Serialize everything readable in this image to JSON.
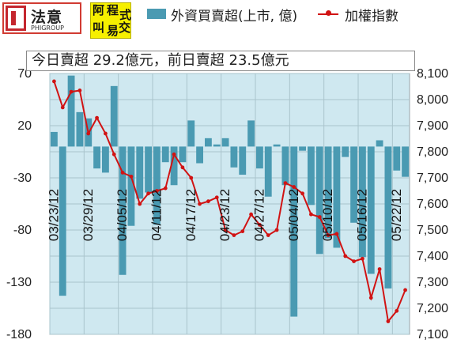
{
  "logos": {
    "brand_name": "法意",
    "brand_sub": "PHIGROUP",
    "badge_chars": [
      "阿",
      "程",
      "式",
      "叫",
      "易",
      "交"
    ]
  },
  "legend": {
    "bar_label": "外資買賣超(上市, 億)",
    "line_label": "加權指數"
  },
  "summary": "今日賣超 29.2億元，前日賣超 23.5億元",
  "colors": {
    "bar": "#4a9ab2",
    "line": "#d11313",
    "plot_bg": "#cfe8f0"
  },
  "chart_data": {
    "type": "bar+line",
    "x_labels": [
      "03/23/12",
      "03/29/12",
      "04/05/12",
      "04/11/12",
      "04/17/12",
      "04/23/12",
      "04/27/12",
      "05/04/12",
      "05/10/12",
      "05/16/12",
      "05/22/12"
    ],
    "x_label_every": 4,
    "bars": [
      14,
      -143,
      68,
      33,
      27,
      -21,
      -25,
      58,
      -123,
      -76,
      -50,
      -44,
      -75,
      -15,
      -37,
      -15,
      25,
      -16,
      8,
      2,
      8,
      -20,
      -27,
      25,
      -21,
      -48,
      2,
      -37,
      -163,
      -4,
      -56,
      -103,
      -88,
      -97,
      -10,
      -73,
      -106,
      -122,
      6,
      -136,
      -23,
      -29
    ],
    "bars_label": "外資買賣超(上市, 億)",
    "bars_ylim": [
      -180,
      70
    ],
    "bars_yticks": [
      70,
      20,
      -30,
      -80,
      -130,
      -180
    ],
    "line": [
      8070,
      7970,
      8030,
      8035,
      7870,
      7930,
      7870,
      7790,
      7720,
      7705,
      7600,
      7640,
      7650,
      7660,
      7790,
      7740,
      7700,
      7600,
      7610,
      7625,
      7500,
      7480,
      7495,
      7560,
      7520,
      7480,
      7500,
      7680,
      7665,
      7640,
      7560,
      7550,
      7480,
      7485,
      7400,
      7380,
      7390,
      7240,
      7350,
      7150,
      7190,
      7270
    ],
    "line_label": "加權指數",
    "line_ylim": [
      7100,
      8100
    ],
    "line_yticks": [
      8100,
      8000,
      7900,
      7800,
      7700,
      7600,
      7500,
      7400,
      7300,
      7200,
      7100
    ],
    "grid": true
  }
}
